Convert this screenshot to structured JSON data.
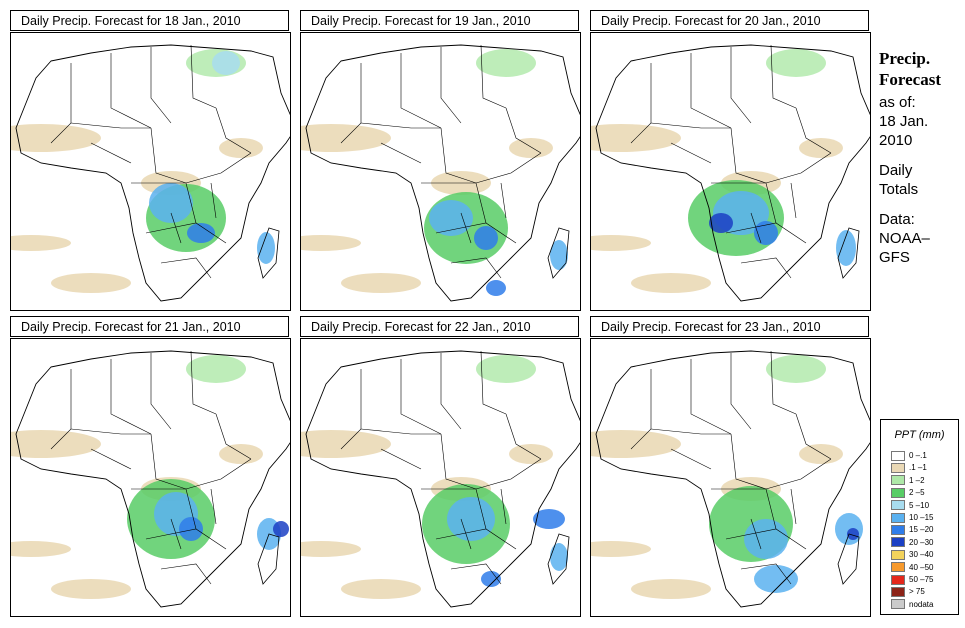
{
  "panels": [
    {
      "title": "Daily Precip. Forecast for  18 Jan., 2010"
    },
    {
      "title": "Daily Precip. Forecast for  19 Jan., 2010"
    },
    {
      "title": "Daily Precip. Forecast for  20 Jan., 2010"
    },
    {
      "title": "Daily Precip. Forecast for  21 Jan., 2010"
    },
    {
      "title": "Daily Precip. Forecast for  22 Jan., 2010"
    },
    {
      "title": "Daily Precip. Forecast for  23 Jan., 2010"
    }
  ],
  "side": {
    "heading1": "Precip.",
    "heading2": "Forecast",
    "asof": "as of:",
    "date1": "18 Jan.",
    "date2": "2010",
    "daily": "Daily",
    "totals": "Totals",
    "data_label": "Data:",
    "data1": "NOAA–",
    "data2": "GFS"
  },
  "legend": {
    "title": "PPT (mm)",
    "items": [
      {
        "label": "0 –.1",
        "color": "#ffffff"
      },
      {
        "label": ".1 –1",
        "color": "#ead9b6"
      },
      {
        "label": "1 –2",
        "color": "#aee8a8"
      },
      {
        "label": "2 –5",
        "color": "#58cd66"
      },
      {
        "label": "5 –10",
        "color": "#a8dcef"
      },
      {
        "label": "10 –15",
        "color": "#5ab1f0"
      },
      {
        "label": "15 –20",
        "color": "#2f7dea"
      },
      {
        "label": "20 –30",
        "color": "#1b40c4"
      },
      {
        "label": "30 –40",
        "color": "#f3d35c"
      },
      {
        "label": "40 –50",
        "color": "#f79a2e"
      },
      {
        "label": "50 –75",
        "color": "#e4271b"
      },
      {
        "label": "> 75",
        "color": "#8c2418"
      },
      {
        "label": "nodata",
        "color": "#cbcbcb"
      }
    ]
  }
}
